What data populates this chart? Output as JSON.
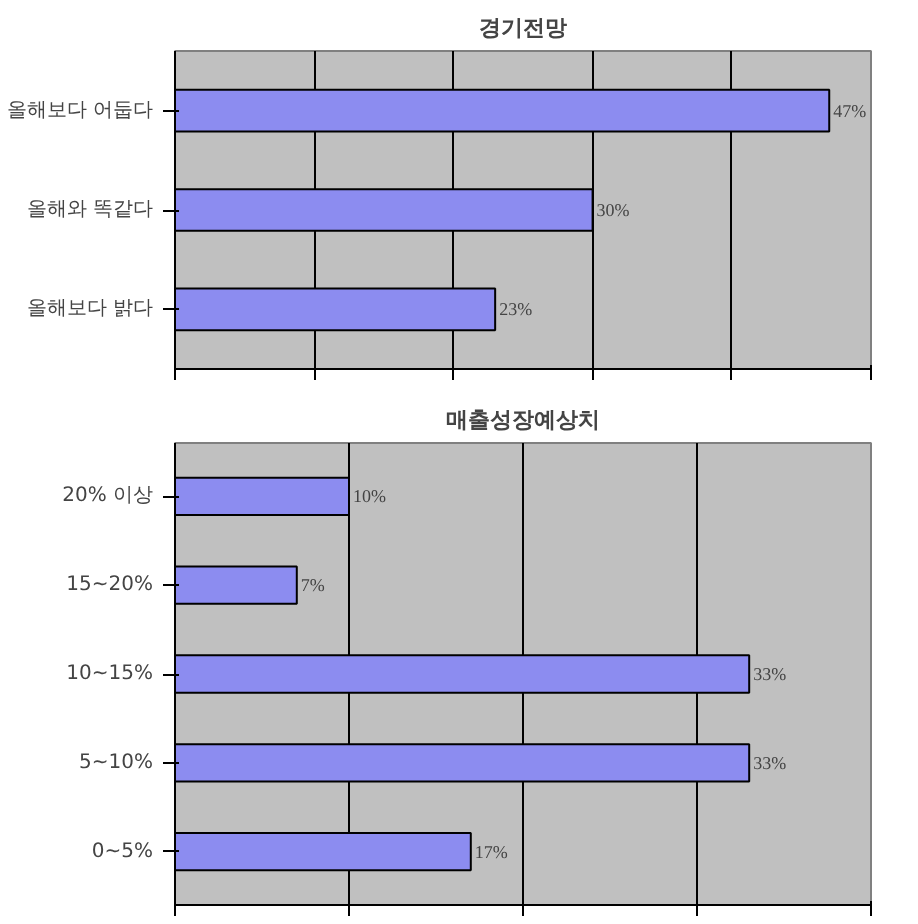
{
  "chart_data": [
    {
      "type": "bar",
      "orientation": "horizontal",
      "title": "경기전망",
      "categories": [
        "올해보다 어둡다",
        "올해와 똑같다",
        "올해보다 밝다"
      ],
      "values": [
        47,
        30,
        23
      ],
      "value_labels": [
        "47%",
        "30%",
        "23%"
      ],
      "color": "#8c8cf0",
      "xlim": [
        0,
        50
      ],
      "xticks": [
        {
          "value": 0,
          "label": null
        },
        {
          "value": 10,
          "label": null
        },
        {
          "value": 20,
          "label": null
        },
        {
          "value": 30,
          "label": null
        },
        {
          "value": 40,
          "label": null
        },
        {
          "value": 50,
          "label": null
        }
      ],
      "grid": "x",
      "tick_labels": "y"
    },
    {
      "type": "bar",
      "orientation": "horizontal",
      "title": "매출성장예상치",
      "categories": [
        "20% 이상",
        "15~20%",
        "10~15%",
        "5~10%",
        "0~5%"
      ],
      "values": [
        10,
        7,
        33,
        33,
        17
      ],
      "value_labels": [
        "10%",
        "7%",
        "33%",
        "33%",
        "17%"
      ],
      "color": "#8c8cf0",
      "xlim": [
        0,
        40
      ],
      "xticks": [
        {
          "value": 0,
          "label": null
        },
        {
          "value": 10,
          "label": null
        },
        {
          "value": 20,
          "label": null
        },
        {
          "value": 30,
          "label": null
        },
        {
          "value": 40,
          "label": null
        }
      ],
      "grid": "x",
      "tick_labels": "y"
    }
  ]
}
